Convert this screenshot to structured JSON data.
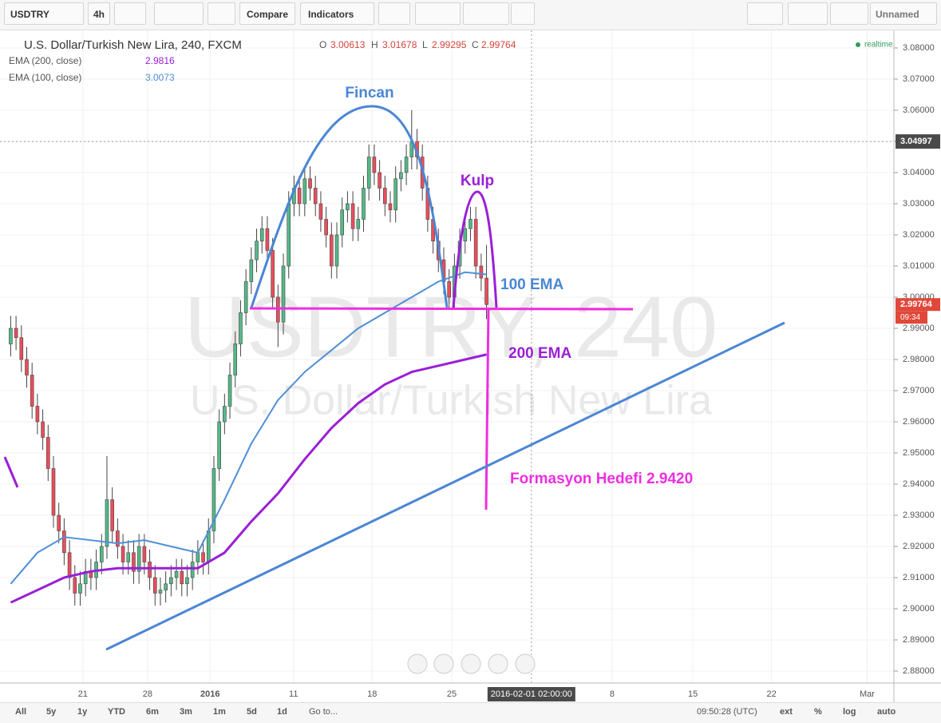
{
  "toolbar": {
    "symbol": "USDTRY",
    "interval": "4h",
    "compare": "Compare",
    "indicators": "Indicators",
    "layout": "Unnamed"
  },
  "chart_data": {
    "type": "candlestick",
    "title": "U.S. Dollar/Turkish New Lira, 240, FXCM",
    "watermark": [
      "USDTRY, 240",
      "U.S. Dollar/Turkish New Lira"
    ],
    "ohlc_labels": [
      "O",
      "H",
      "L",
      "C"
    ],
    "status": "realtime",
    "up_color": "#53b987",
    "down_color": "#eb4d5c",
    "open": [
      2.985,
      2.99,
      2.987,
      2.98,
      2.975,
      2.965,
      2.96,
      2.955,
      2.945,
      2.93,
      2.925,
      2.918,
      2.91,
      2.905,
      2.908,
      2.912,
      2.91,
      2.915,
      2.92,
      2.935,
      2.925,
      2.92,
      2.915,
      2.918,
      2.912,
      2.92,
      2.915,
      2.91,
      2.905,
      2.906,
      2.908,
      2.91,
      2.912,
      2.908,
      2.91,
      2.915,
      2.918,
      2.915,
      2.925,
      2.945,
      2.96,
      2.965,
      2.975,
      2.985,
      2.995,
      3.005,
      3.012,
      3.018,
      3.022,
      3.015,
      3.0,
      2.992,
      3.01,
      3.03,
      3.035,
      3.03,
      3.038,
      3.035,
      3.03,
      3.025,
      3.02,
      3.01,
      3.02,
      3.028,
      3.03,
      3.022,
      3.025,
      3.035,
      3.045,
      3.04,
      3.035,
      3.03,
      3.028,
      3.038,
      3.04,
      3.045,
      3.05,
      3.045,
      3.035,
      3.025,
      3.018,
      3.012,
      3.005,
      3.0,
      3.01,
      3.018,
      3.022,
      3.025,
      3.01,
      3.00613
    ],
    "high": [
      2.994,
      2.994,
      2.991,
      2.984,
      2.979,
      2.969,
      2.964,
      2.959,
      2.949,
      2.934,
      2.929,
      2.922,
      2.914,
      2.912,
      2.916,
      2.916,
      2.919,
      2.924,
      2.949,
      2.939,
      2.929,
      2.924,
      2.922,
      2.922,
      2.924,
      2.924,
      2.919,
      2.914,
      2.91,
      2.912,
      2.914,
      2.916,
      2.916,
      2.914,
      2.919,
      2.922,
      2.922,
      2.929,
      2.949,
      2.964,
      2.969,
      2.979,
      2.989,
      2.999,
      3.009,
      3.016,
      3.022,
      3.026,
      3.026,
      3.019,
      3.004,
      3.014,
      3.034,
      3.039,
      3.039,
      3.042,
      3.042,
      3.039,
      3.034,
      3.029,
      3.024,
      3.024,
      3.032,
      3.034,
      3.034,
      3.029,
      3.039,
      3.049,
      3.049,
      3.044,
      3.039,
      3.034,
      3.042,
      3.044,
      3.049,
      3.06,
      3.054,
      3.049,
      3.039,
      3.029,
      3.022,
      3.016,
      3.009,
      3.014,
      3.022,
      3.026,
      3.029,
      3.029,
      3.014,
      3.01678
    ],
    "low": [
      2.981,
      2.983,
      2.976,
      2.971,
      2.961,
      2.956,
      2.951,
      2.941,
      2.926,
      2.921,
      2.914,
      2.906,
      2.901,
      2.901,
      2.904,
      2.906,
      2.906,
      2.911,
      2.916,
      2.921,
      2.916,
      2.911,
      2.911,
      2.908,
      2.908,
      2.911,
      2.906,
      2.901,
      2.901,
      2.902,
      2.904,
      2.906,
      2.904,
      2.904,
      2.906,
      2.911,
      2.911,
      2.911,
      2.921,
      2.941,
      2.956,
      2.961,
      2.971,
      2.981,
      2.991,
      3.001,
      3.008,
      3.014,
      3.011,
      2.996,
      2.984,
      2.988,
      3.006,
      3.026,
      3.026,
      3.026,
      3.031,
      3.026,
      3.021,
      3.016,
      3.006,
      3.006,
      3.016,
      3.024,
      3.018,
      3.018,
      3.021,
      3.031,
      3.036,
      3.031,
      3.026,
      3.024,
      3.024,
      3.034,
      3.036,
      3.041,
      3.041,
      3.031,
      3.021,
      3.014,
      3.008,
      3.001,
      2.996,
      2.996,
      3.006,
      3.014,
      3.018,
      3.006,
      3.002,
      2.99295
    ],
    "close": [
      2.99,
      2.987,
      2.98,
      2.975,
      2.965,
      2.96,
      2.955,
      2.945,
      2.93,
      2.925,
      2.918,
      2.91,
      2.905,
      2.908,
      2.912,
      2.91,
      2.915,
      2.92,
      2.935,
      2.925,
      2.92,
      2.915,
      2.918,
      2.912,
      2.92,
      2.915,
      2.91,
      2.905,
      2.906,
      2.908,
      2.91,
      2.912,
      2.908,
      2.91,
      2.915,
      2.918,
      2.915,
      2.925,
      2.945,
      2.96,
      2.965,
      2.975,
      2.985,
      2.995,
      3.005,
      3.012,
      3.018,
      3.022,
      3.015,
      3.0,
      2.992,
      3.01,
      3.03,
      3.035,
      3.03,
      3.038,
      3.035,
      3.03,
      3.025,
      3.02,
      3.01,
      3.02,
      3.028,
      3.03,
      3.022,
      3.025,
      3.035,
      3.045,
      3.04,
      3.035,
      3.03,
      3.028,
      3.038,
      3.04,
      3.045,
      3.05,
      3.045,
      3.035,
      3.025,
      3.018,
      3.012,
      3.005,
      3.0,
      3.01,
      3.018,
      3.022,
      3.025,
      3.01,
      3.00613,
      2.99764
    ],
    "series": [
      {
        "name": "EMA (200, close)",
        "color": "#9a1fd6",
        "x": [
          0,
          5,
          10,
          15,
          20,
          25,
          30,
          35,
          40,
          45,
          50,
          55,
          60,
          65,
          70,
          75,
          80,
          85,
          89
        ],
        "values": [
          2.902,
          2.906,
          2.91,
          2.912,
          2.913,
          2.913,
          2.913,
          2.913,
          2.918,
          2.928,
          2.937,
          2.948,
          2.958,
          2.966,
          2.972,
          2.976,
          2.978,
          2.98,
          2.9816
        ]
      },
      {
        "name": "EMA (100, close)",
        "color": "#4f8fd8",
        "x": [
          0,
          5,
          10,
          15,
          20,
          25,
          30,
          35,
          40,
          45,
          50,
          55,
          60,
          65,
          70,
          75,
          80,
          85,
          89
        ],
        "values": [
          2.908,
          2.918,
          2.923,
          2.922,
          2.921,
          2.922,
          2.92,
          2.918,
          2.935,
          2.953,
          2.967,
          2.976,
          2.983,
          2.99,
          2.995,
          3.0,
          3.005,
          3.008,
          3.0073
        ]
      }
    ],
    "xlim": [
      -2,
      165.2
    ],
    "xticks": [
      {
        "value": 13.5,
        "label": "21"
      },
      {
        "value": 25.6,
        "label": "28"
      },
      2016,
      {
        "value": 52.9,
        "label": "11"
      },
      {
        "value": 67.6,
        "label": "18"
      },
      {
        "value": 82.5,
        "label": "25"
      },
      {
        "value": 112.5,
        "label": "8"
      },
      {
        "value": 127.6,
        "label": "15"
      },
      {
        "value": 142.3,
        "label": "22"
      },
      {
        "value": 160.2,
        "label": "Mar"
      }
    ],
    "year_tick_position": 37.3,
    "ylim": [
      2.87615,
      3.08564
    ],
    "yticks": [
      {
        "value": 2.88,
        "label": "2.88000"
      },
      {
        "value": 2.89,
        "label": "2.89000"
      },
      {
        "value": 2.9,
        "label": "2.90000"
      },
      {
        "value": 2.91,
        "label": "2.91000"
      },
      {
        "value": 2.92,
        "label": "2.92000"
      },
      {
        "value": 2.93,
        "label": "2.93000"
      },
      {
        "value": 2.94,
        "label": "2.94000"
      },
      {
        "value": 2.95,
        "label": "2.95000"
      },
      {
        "value": 2.96,
        "label": "2.96000"
      },
      {
        "value": 2.97,
        "label": "2.97000"
      },
      {
        "value": 2.98,
        "label": "2.98000"
      },
      {
        "value": 2.99,
        "label": "2.99000"
      },
      {
        "value": 3.0,
        "label": "3.00000"
      },
      {
        "value": 3.01,
        "label": "3.01000"
      },
      {
        "value": 3.02,
        "label": "3.02000"
      },
      {
        "value": 3.03,
        "label": "3.03000"
      },
      {
        "value": 3.04,
        "label": "3.04000"
      },
      {
        "value": 3.05,
        "label": "3.05000"
      },
      {
        "value": 3.06,
        "label": "3.06000"
      },
      {
        "value": 3.07,
        "label": "3.07000"
      },
      {
        "value": 3.08,
        "label": "3.08000"
      }
    ],
    "crosshair": {
      "y": 3.04997,
      "x": {
        "value": 97.4,
        "label": "2016-02-01 02:00:00"
      }
    },
    "countdown": "09:34",
    "annotations": {
      "fincan": "Fincan",
      "kulp": "Kulp",
      "ema100": "100 EMA",
      "ema200": "200 EMA",
      "target": "Formasyon Hedefi 2.9420"
    }
  },
  "footer": {
    "ranges": [
      "All",
      "5y",
      "1y",
      "YTD",
      "6m",
      "3m",
      "1m",
      "5d",
      "1d"
    ],
    "goto": "Go to...",
    "time": "09:50:28 (UTC)",
    "options": [
      "ext",
      "%",
      "log",
      "auto"
    ]
  }
}
